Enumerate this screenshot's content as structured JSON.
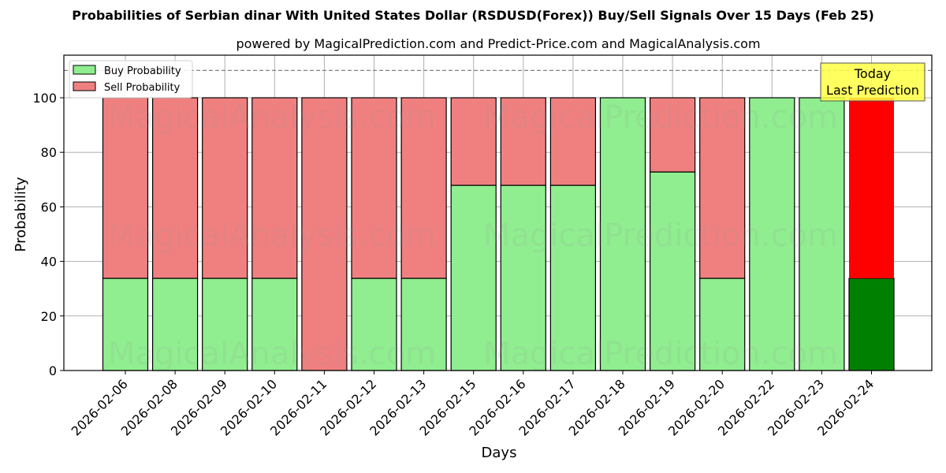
{
  "title": "Probabilities of Serbian dinar With United States Dollar (RSDUSD(Forex)) Buy/Sell Signals Over 15 Days (Feb 25)",
  "subtitle": "powered by MagicalPrediction.com and Predict-Price.com and MagicalAnalysis.com",
  "legend": {
    "buy": "Buy Probability",
    "sell": "Sell Probability"
  },
  "annotation": {
    "line1": "Today",
    "line2": "Last Prediction"
  },
  "watermarks": [
    "MagicalAnalysis.com",
    "MagicalPrediction.com"
  ],
  "colors": {
    "buy": "#90ee90",
    "sell": "#f08080",
    "today_buy": "#008000",
    "today_sell": "#ff0000",
    "annotation_bg": "#ffff44"
  },
  "chart_data": {
    "type": "bar",
    "stacked": true,
    "title": "Probabilities of Serbian dinar With United States Dollar (RSDUSD(Forex)) Buy/Sell Signals Over 15 Days (Feb 25)",
    "subtitle": "powered by MagicalPrediction.com and Predict-Price.com and MagicalAnalysis.com",
    "xlabel": "Days",
    "ylabel": "Probability",
    "ylim": [
      0,
      115
    ],
    "yticks": [
      0,
      20,
      40,
      60,
      80,
      100
    ],
    "grid": true,
    "legend_position": "upper left",
    "reference_line": {
      "y": 110,
      "style": "dashed"
    },
    "categories": [
      "2026-02-06",
      "2026-02-08",
      "2026-02-09",
      "2026-02-10",
      "2026-02-11",
      "2026-02-12",
      "2026-02-13",
      "2026-02-15",
      "2026-02-16",
      "2026-02-17",
      "2026-02-18",
      "2026-02-19",
      "2026-02-20",
      "2026-02-22",
      "2026-02-23",
      "2026-02-24"
    ],
    "series": [
      {
        "name": "Buy Probability",
        "values": [
          33.8,
          33.8,
          33.8,
          33.8,
          0,
          33.8,
          33.8,
          67.9,
          67.9,
          67.9,
          100,
          72.8,
          33.8,
          100,
          100,
          33.8
        ]
      },
      {
        "name": "Sell Probability",
        "values": [
          66.2,
          66.2,
          66.2,
          66.2,
          100,
          66.2,
          66.2,
          32.1,
          32.1,
          32.1,
          0,
          27.2,
          66.2,
          0,
          0,
          66.2
        ]
      }
    ],
    "highlight": {
      "category": "2026-02-24",
      "label": "Today Last Prediction"
    }
  }
}
